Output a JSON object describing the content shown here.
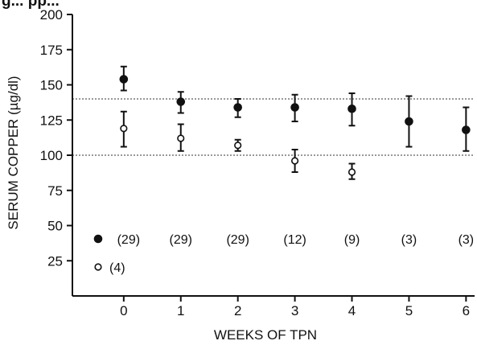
{
  "title_fragment": "g... pp...",
  "chart_data": {
    "type": "scatter",
    "xlabel": "WEEKS OF TPN",
    "ylabel": "SERUM COPPER (µg/dl)",
    "xlim": [
      -0.9,
      6.15
    ],
    "ylim": [
      0,
      200
    ],
    "x_ticks": [
      "0",
      "1",
      "2",
      "3",
      "4",
      "5",
      "6"
    ],
    "y_ticks": [
      "25",
      "50",
      "75",
      "100",
      "125",
      "150",
      "175",
      "200"
    ],
    "reference_lines": [
      100,
      140
    ],
    "series": [
      {
        "marker": "filled-circle",
        "x": [
          0,
          1,
          2,
          3,
          4,
          5,
          6
        ],
        "y": [
          154,
          138,
          134,
          134,
          133,
          124,
          118
        ],
        "err_low": [
          146,
          130,
          127,
          124,
          121,
          106,
          103
        ],
        "err_high": [
          163,
          145,
          140,
          143,
          144,
          142,
          134
        ],
        "n_labels": [
          "(29)",
          "(29)",
          "(29)",
          "(12)",
          "(9)",
          "(3)",
          "(3)"
        ]
      },
      {
        "marker": "open-circle",
        "x": [
          0,
          1,
          2,
          3,
          4
        ],
        "y": [
          119,
          112,
          107,
          96,
          88
        ],
        "err_low": [
          106,
          103,
          103,
          88,
          83
        ],
        "err_high": [
          131,
          122,
          111,
          104,
          94
        ]
      }
    ],
    "legend": [
      {
        "marker": "filled-circle",
        "label": "(29)"
      },
      {
        "marker": "open-circle",
        "label": "(4)"
      }
    ]
  }
}
